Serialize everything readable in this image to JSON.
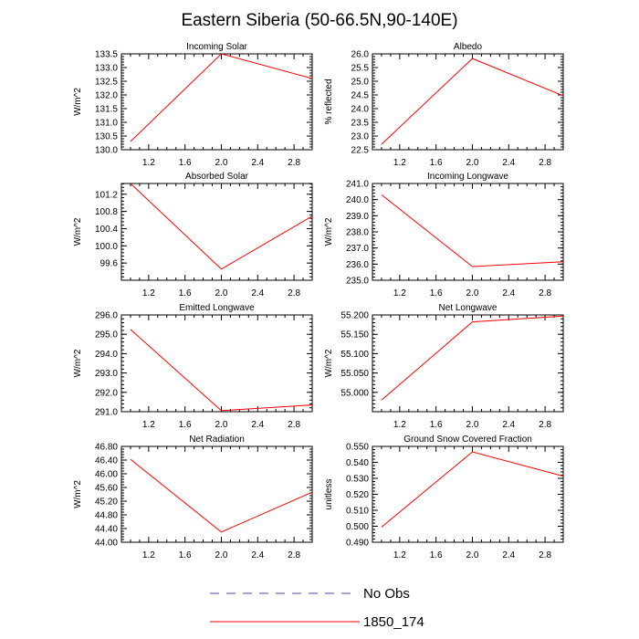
{
  "title": "Eastern Siberia (50-66.5N,90-140E)",
  "legend": {
    "items": [
      {
        "label": "No Obs",
        "color": "#4a4aa8",
        "style": "dashed"
      },
      {
        "label": "1850_174",
        "color": "#ff0000",
        "style": "solid"
      }
    ]
  },
  "chart_data": [
    {
      "type": "line",
      "title": "Incoming Solar",
      "ylabel": "W/m^2",
      "x": [
        1,
        2,
        3
      ],
      "series": [
        {
          "name": "1850_174",
          "values": [
            130.3,
            133.5,
            132.6
          ]
        }
      ],
      "xlim": [
        0.9,
        3.0
      ],
      "ylim": [
        130.0,
        133.5
      ],
      "xticks": [
        "1.2",
        "1.6",
        "2.0",
        "2.4",
        "2.8"
      ],
      "yticks": [
        "130.0",
        "130.5",
        "131.0",
        "131.5",
        "132.0",
        "132.5",
        "133.0",
        "133.5"
      ]
    },
    {
      "type": "line",
      "title": "Albedo",
      "ylabel": "% reflected",
      "x": [
        1,
        2,
        3
      ],
      "series": [
        {
          "name": "1850_174",
          "values": [
            22.7,
            25.83,
            24.47
          ]
        }
      ],
      "xlim": [
        0.9,
        3.0
      ],
      "ylim": [
        22.5,
        26.0
      ],
      "xticks": [
        "1.2",
        "1.6",
        "2.0",
        "2.4",
        "2.8"
      ],
      "yticks": [
        "22.5",
        "23.0",
        "23.5",
        "24.0",
        "24.5",
        "25.0",
        "25.5",
        "26.0"
      ]
    },
    {
      "type": "line",
      "title": "Absorbed Solar",
      "ylabel": "W/m^2",
      "x": [
        1,
        2,
        3
      ],
      "series": [
        {
          "name": "1850_174",
          "values": [
            101.45,
            99.46,
            100.69
          ]
        }
      ],
      "xlim": [
        0.9,
        3.0
      ],
      "ylim": [
        99.2,
        101.45
      ],
      "xticks": [
        "1.2",
        "1.6",
        "2.0",
        "2.4",
        "2.8"
      ],
      "yticks": [
        "99.6",
        "100.0",
        "100.4",
        "100.8",
        "101.2"
      ]
    },
    {
      "type": "line",
      "title": "Incoming Longwave",
      "ylabel": "W/m^2",
      "x": [
        1,
        2,
        3
      ],
      "series": [
        {
          "name": "1850_174",
          "values": [
            240.3,
            235.85,
            236.15
          ]
        }
      ],
      "xlim": [
        0.9,
        3.0
      ],
      "ylim": [
        235.0,
        241.0
      ],
      "xticks": [
        "1.2",
        "1.6",
        "2.0",
        "2.4",
        "2.8"
      ],
      "yticks": [
        "235.0",
        "236.0",
        "237.0",
        "238.0",
        "239.0",
        "240.0",
        "241.0"
      ]
    },
    {
      "type": "line",
      "title": "Emitted Longwave",
      "ylabel": "W/m^2",
      "x": [
        1,
        2,
        3
      ],
      "series": [
        {
          "name": "1850_174",
          "values": [
            295.25,
            291.05,
            291.35
          ]
        }
      ],
      "xlim": [
        0.9,
        3.0
      ],
      "ylim": [
        291.0,
        296.0
      ],
      "xticks": [
        "1.2",
        "1.6",
        "2.0",
        "2.4",
        "2.8"
      ],
      "yticks": [
        "291.0",
        "292.0",
        "293.0",
        "294.0",
        "295.0",
        "296.0"
      ]
    },
    {
      "type": "line",
      "title": "Net Longwave",
      "ylabel": "W/m^2",
      "x": [
        1,
        2,
        3
      ],
      "series": [
        {
          "name": "1850_174",
          "values": [
            54.98,
            55.182,
            55.197
          ]
        }
      ],
      "xlim": [
        0.9,
        3.0
      ],
      "ylim": [
        54.95,
        55.2
      ],
      "xticks": [
        "1.2",
        "1.6",
        "2.0",
        "2.4",
        "2.8"
      ],
      "yticks": [
        "55.000",
        "55.050",
        "55.100",
        "55.150",
        "55.200"
      ]
    },
    {
      "type": "line",
      "title": "Net Radiation",
      "ylabel": "W/m^2",
      "x": [
        1,
        2,
        3
      ],
      "series": [
        {
          "name": "1850_174",
          "values": [
            46.42,
            44.3,
            45.46
          ]
        }
      ],
      "xlim": [
        0.9,
        3.0
      ],
      "ylim": [
        44.0,
        46.8
      ],
      "xticks": [
        "1.2",
        "1.6",
        "2.0",
        "2.4",
        "2.8"
      ],
      "yticks": [
        "44.00",
        "44.40",
        "44.80",
        "45.20",
        "45.60",
        "46.00",
        "46.40",
        "46.80"
      ]
    },
    {
      "type": "line",
      "title": "Ground Snow Covered Fraction",
      "ylabel": "unitless",
      "x": [
        1,
        2,
        3
      ],
      "series": [
        {
          "name": "1850_174",
          "values": [
            0.4995,
            0.5466,
            0.5314
          ]
        }
      ],
      "xlim": [
        0.9,
        3.0
      ],
      "ylim": [
        0.49,
        0.55
      ],
      "xticks": [
        "1.2",
        "1.6",
        "2.0",
        "2.4",
        "2.8"
      ],
      "yticks": [
        "0.490",
        "0.500",
        "0.510",
        "0.520",
        "0.530",
        "0.540",
        "0.550"
      ]
    }
  ]
}
